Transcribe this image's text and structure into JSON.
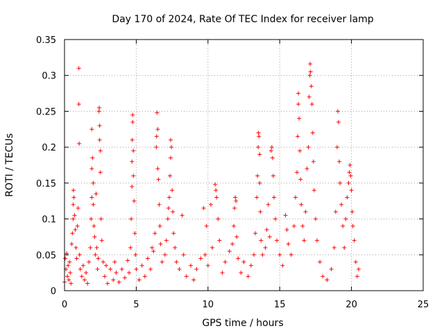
{
  "chart_data": {
    "type": "scatter",
    "title": "Day 170 of 2024, Rate Of TEC Index for receiver lamp",
    "xlabel": "GPS time / hours",
    "ylabel": "ROTI / TECUs",
    "xlim": [
      0,
      25
    ],
    "ylim": [
      0,
      0.35
    ],
    "x_ticks": [
      0,
      5,
      10,
      15,
      20,
      25
    ],
    "x_tick_labels": [
      "0",
      "5",
      "10",
      "15",
      "20",
      "25"
    ],
    "y_ticks": [
      0,
      0.05,
      0.1,
      0.15,
      0.2,
      0.25,
      0.3,
      0.35
    ],
    "y_tick_labels": [
      "0",
      "0.05",
      "0.1",
      "0.15",
      "0.2",
      "0.25",
      "0.3",
      "0.35"
    ],
    "grid": true,
    "marker": "plus",
    "color": "#ff0000",
    "series": [
      {
        "name": "ROTI",
        "points": [
          [
            0.0,
            0.012
          ],
          [
            0.05,
            0.045
          ],
          [
            0.1,
            0.03
          ],
          [
            0.15,
            0.052
          ],
          [
            0.2,
            0.02
          ],
          [
            0.25,
            0.035
          ],
          [
            0.3,
            0.015
          ],
          [
            0.35,
            0.04
          ],
          [
            0.4,
            0.025
          ],
          [
            0.45,
            0.01
          ],
          [
            0.5,
            0.065
          ],
          [
            0.55,
            0.08
          ],
          [
            0.6,
            0.1
          ],
          [
            0.6,
            0.12
          ],
          [
            0.62,
            0.14
          ],
          [
            0.65,
            0.13
          ],
          [
            0.7,
            0.105
          ],
          [
            0.75,
            0.085
          ],
          [
            0.8,
            0.06
          ],
          [
            0.85,
            0.045
          ],
          [
            0.9,
            0.09
          ],
          [
            0.95,
            0.115
          ],
          [
            1.0,
            0.31
          ],
          [
            1.0,
            0.26
          ],
          [
            1.02,
            0.205
          ],
          [
            1.05,
            0.05
          ],
          [
            1.1,
            0.03
          ],
          [
            1.2,
            0.02
          ],
          [
            1.3,
            0.035
          ],
          [
            1.4,
            0.015
          ],
          [
            1.5,
            0.025
          ],
          [
            1.6,
            0.01
          ],
          [
            1.7,
            0.04
          ],
          [
            1.8,
            0.06
          ],
          [
            1.85,
            0.1
          ],
          [
            1.9,
            0.13
          ],
          [
            1.9,
            0.17
          ],
          [
            1.9,
            0.225
          ],
          [
            1.95,
            0.185
          ],
          [
            2.0,
            0.15
          ],
          [
            2.0,
            0.12
          ],
          [
            2.05,
            0.09
          ],
          [
            2.1,
            0.075
          ],
          [
            2.15,
            0.05
          ],
          [
            2.2,
            0.135
          ],
          [
            2.25,
            0.06
          ],
          [
            2.3,
            0.03
          ],
          [
            2.35,
            0.045
          ],
          [
            2.4,
            0.25
          ],
          [
            2.42,
            0.255
          ],
          [
            2.45,
            0.23
          ],
          [
            2.45,
            0.21
          ],
          [
            2.5,
            0.195
          ],
          [
            2.5,
            0.165
          ],
          [
            2.55,
            0.1
          ],
          [
            2.6,
            0.07
          ],
          [
            2.7,
            0.04
          ],
          [
            2.8,
            0.02
          ],
          [
            2.9,
            0.035
          ],
          [
            3.0,
            0.01
          ],
          [
            3.2,
            0.03
          ],
          [
            3.4,
            0.015
          ],
          [
            3.5,
            0.04
          ],
          [
            3.6,
            0.025
          ],
          [
            3.8,
            0.012
          ],
          [
            4.0,
            0.03
          ],
          [
            4.2,
            0.018
          ],
          [
            4.4,
            0.042
          ],
          [
            4.5,
            0.025
          ],
          [
            4.6,
            0.06
          ],
          [
            4.65,
            0.1
          ],
          [
            4.7,
            0.145
          ],
          [
            4.7,
            0.18
          ],
          [
            4.72,
            0.21
          ],
          [
            4.75,
            0.235
          ],
          [
            4.75,
            0.245
          ],
          [
            4.8,
            0.195
          ],
          [
            4.8,
            0.16
          ],
          [
            4.85,
            0.125
          ],
          [
            4.9,
            0.08
          ],
          [
            4.95,
            0.05
          ],
          [
            5.0,
            0.03
          ],
          [
            5.2,
            0.015
          ],
          [
            5.4,
            0.035
          ],
          [
            5.6,
            0.02
          ],
          [
            5.8,
            0.045
          ],
          [
            6.0,
            0.03
          ],
          [
            6.1,
            0.06
          ],
          [
            6.2,
            0.055
          ],
          [
            6.3,
            0.08
          ],
          [
            6.4,
            0.2
          ],
          [
            6.42,
            0.215
          ],
          [
            6.45,
            0.248
          ],
          [
            6.5,
            0.225
          ],
          [
            6.5,
            0.17
          ],
          [
            6.55,
            0.155
          ],
          [
            6.6,
            0.12
          ],
          [
            6.65,
            0.09
          ],
          [
            6.7,
            0.065
          ],
          [
            6.8,
            0.04
          ],
          [
            7.0,
            0.05
          ],
          [
            7.1,
            0.07
          ],
          [
            7.2,
            0.1
          ],
          [
            7.25,
            0.115
          ],
          [
            7.3,
            0.13
          ],
          [
            7.35,
            0.16
          ],
          [
            7.4,
            0.185
          ],
          [
            7.4,
            0.21
          ],
          [
            7.45,
            0.2
          ],
          [
            7.5,
            0.14
          ],
          [
            7.55,
            0.11
          ],
          [
            7.6,
            0.08
          ],
          [
            7.7,
            0.06
          ],
          [
            7.8,
            0.04
          ],
          [
            8.0,
            0.03
          ],
          [
            8.2,
            0.105
          ],
          [
            8.3,
            0.05
          ],
          [
            8.5,
            0.02
          ],
          [
            8.8,
            0.035
          ],
          [
            9.0,
            0.015
          ],
          [
            9.2,
            0.03
          ],
          [
            9.5,
            0.045
          ],
          [
            9.7,
            0.115
          ],
          [
            9.8,
            0.05
          ],
          [
            9.9,
            0.09
          ],
          [
            10.0,
            0.035
          ],
          [
            10.2,
            0.12
          ],
          [
            10.3,
            0.06
          ],
          [
            10.5,
            0.148
          ],
          [
            10.55,
            0.14
          ],
          [
            10.6,
            0.13
          ],
          [
            10.7,
            0.1
          ],
          [
            10.8,
            0.07
          ],
          [
            11.0,
            0.025
          ],
          [
            11.2,
            0.04
          ],
          [
            11.5,
            0.055
          ],
          [
            11.7,
            0.065
          ],
          [
            11.8,
            0.09
          ],
          [
            11.85,
            0.115
          ],
          [
            11.9,
            0.13
          ],
          [
            11.95,
            0.125
          ],
          [
            12.0,
            0.075
          ],
          [
            12.1,
            0.045
          ],
          [
            12.3,
            0.025
          ],
          [
            12.5,
            0.04
          ],
          [
            12.8,
            0.02
          ],
          [
            13.0,
            0.035
          ],
          [
            13.2,
            0.05
          ],
          [
            13.3,
            0.08
          ],
          [
            13.4,
            0.13
          ],
          [
            13.45,
            0.16
          ],
          [
            13.5,
            0.2
          ],
          [
            13.52,
            0.22
          ],
          [
            13.55,
            0.215
          ],
          [
            13.6,
            0.19
          ],
          [
            13.6,
            0.15
          ],
          [
            13.65,
            0.11
          ],
          [
            13.7,
            0.07
          ],
          [
            13.8,
            0.05
          ],
          [
            14.0,
            0.06
          ],
          [
            14.1,
            0.085
          ],
          [
            14.2,
            0.12
          ],
          [
            14.3,
            0.075
          ],
          [
            14.4,
            0.195
          ],
          [
            14.45,
            0.2
          ],
          [
            14.5,
            0.185
          ],
          [
            14.55,
            0.16
          ],
          [
            14.6,
            0.13
          ],
          [
            14.7,
            0.1
          ],
          [
            14.8,
            0.07
          ],
          [
            15.0,
            0.05
          ],
          [
            15.2,
            0.035
          ],
          [
            15.4,
            0.105
          ],
          [
            15.5,
            0.085
          ],
          [
            15.6,
            0.065
          ],
          [
            15.8,
            0.05
          ],
          [
            16.0,
            0.09
          ],
          [
            16.1,
            0.13
          ],
          [
            16.2,
            0.165
          ],
          [
            16.25,
            0.215
          ],
          [
            16.3,
            0.26
          ],
          [
            16.3,
            0.275
          ],
          [
            16.35,
            0.24
          ],
          [
            16.4,
            0.195
          ],
          [
            16.45,
            0.155
          ],
          [
            16.5,
            0.12
          ],
          [
            16.6,
            0.09
          ],
          [
            16.7,
            0.07
          ],
          [
            16.8,
            0.11
          ],
          [
            16.9,
            0.17
          ],
          [
            17.0,
            0.2
          ],
          [
            17.05,
            0.27
          ],
          [
            17.1,
            0.3
          ],
          [
            17.12,
            0.316
          ],
          [
            17.15,
            0.305
          ],
          [
            17.2,
            0.285
          ],
          [
            17.25,
            0.26
          ],
          [
            17.3,
            0.22
          ],
          [
            17.35,
            0.18
          ],
          [
            17.4,
            0.14
          ],
          [
            17.5,
            0.1
          ],
          [
            17.6,
            0.07
          ],
          [
            17.8,
            0.04
          ],
          [
            18.0,
            0.02
          ],
          [
            18.3,
            0.015
          ],
          [
            18.6,
            0.03
          ],
          [
            18.8,
            0.06
          ],
          [
            18.9,
            0.11
          ],
          [
            19.0,
            0.2
          ],
          [
            19.05,
            0.25
          ],
          [
            19.1,
            0.235
          ],
          [
            19.15,
            0.18
          ],
          [
            19.2,
            0.15
          ],
          [
            19.3,
            0.12
          ],
          [
            19.4,
            0.09
          ],
          [
            19.5,
            0.06
          ],
          [
            19.6,
            0.1
          ],
          [
            19.7,
            0.13
          ],
          [
            19.8,
            0.15
          ],
          [
            19.85,
            0.165
          ],
          [
            19.9,
            0.175
          ],
          [
            19.95,
            0.16
          ],
          [
            20.0,
            0.14
          ],
          [
            20.05,
            0.11
          ],
          [
            20.1,
            0.09
          ],
          [
            20.2,
            0.07
          ],
          [
            20.3,
            0.04
          ],
          [
            20.4,
            0.02
          ],
          [
            20.5,
            0.03
          ]
        ]
      }
    ]
  }
}
